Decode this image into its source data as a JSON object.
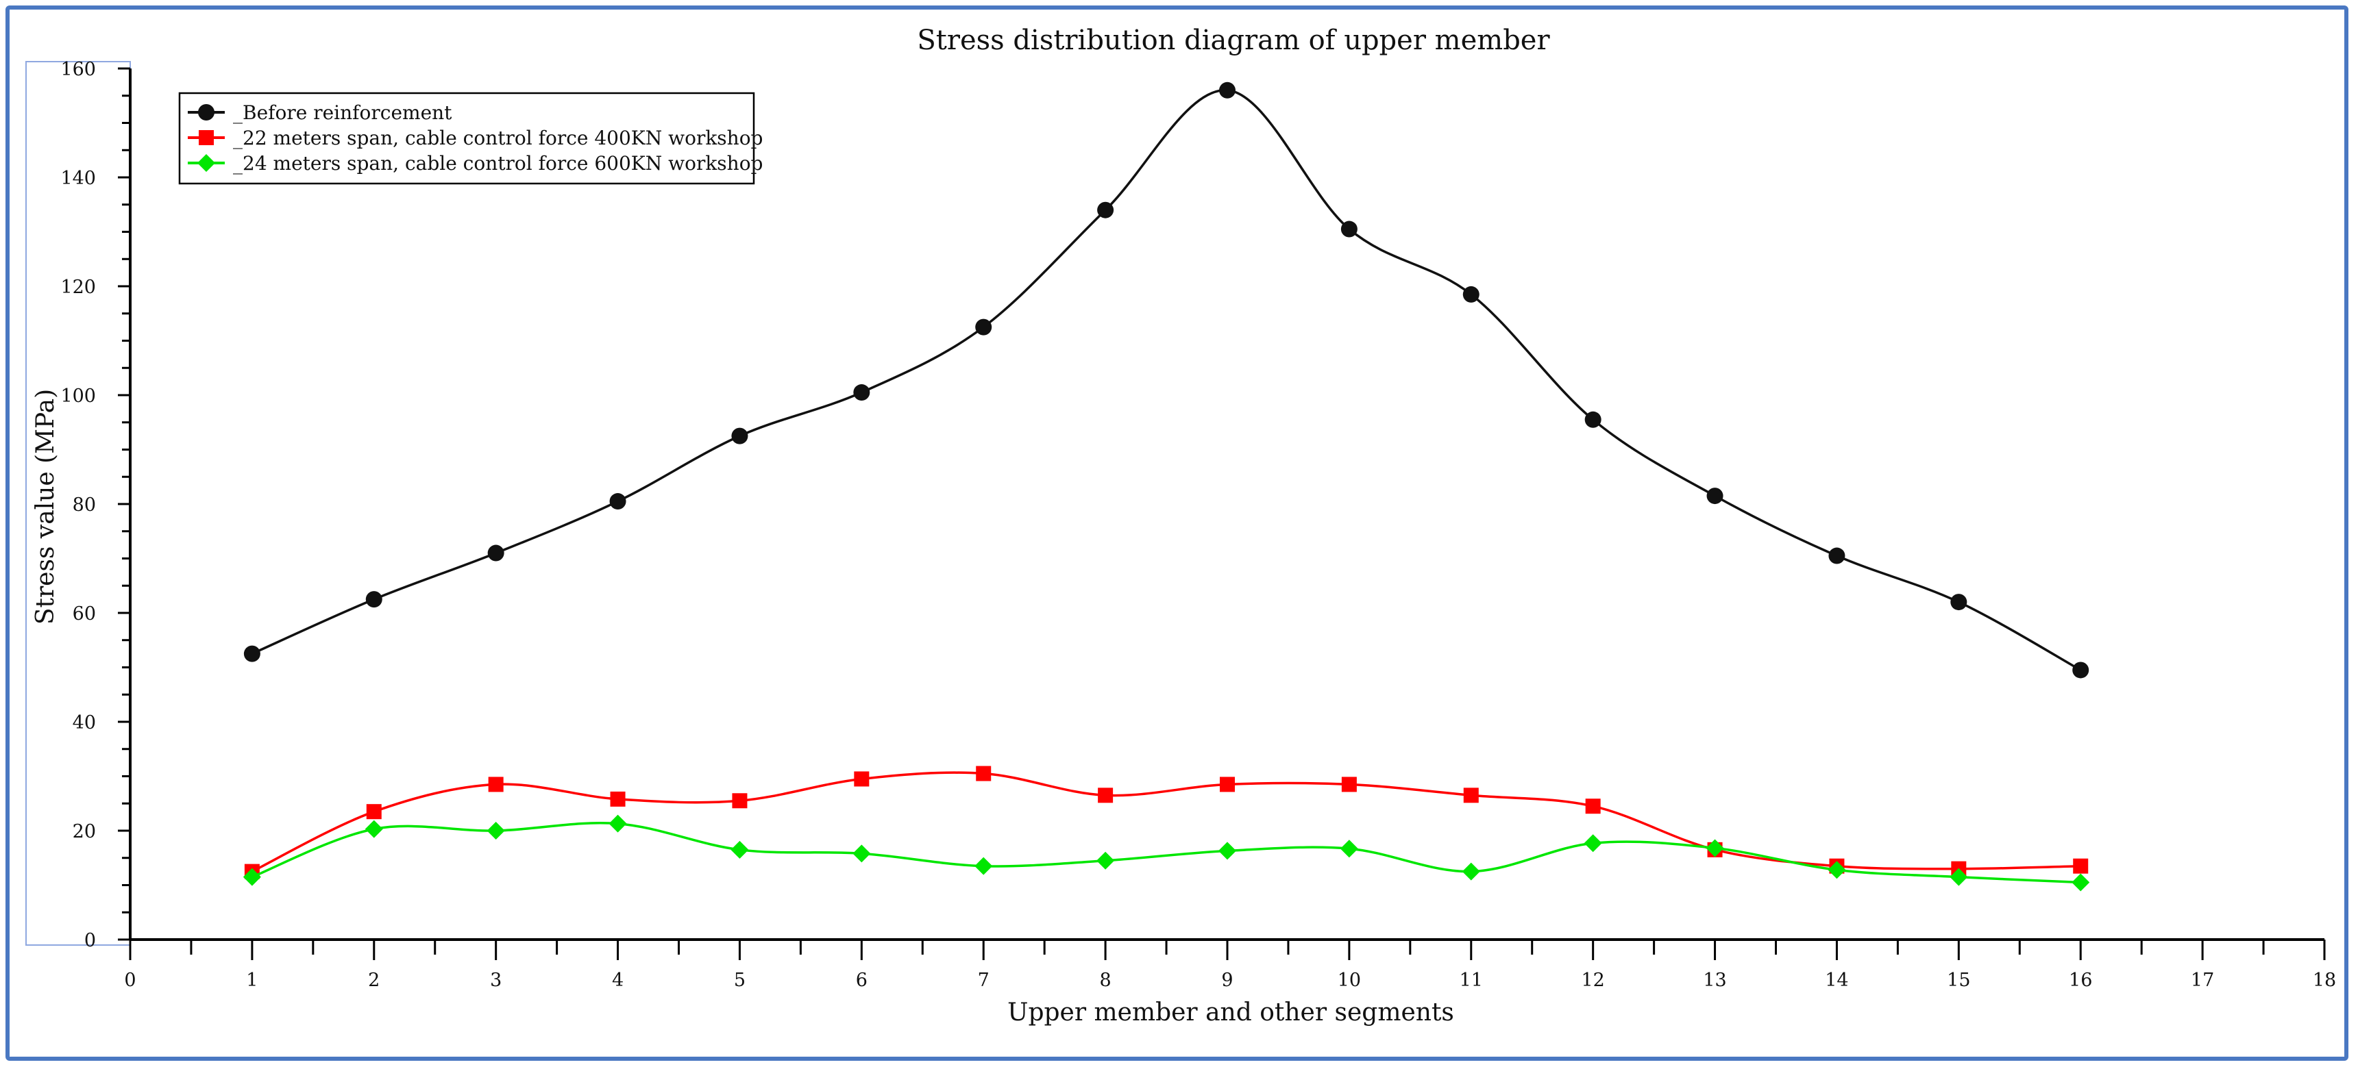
{
  "chart_data": {
    "type": "line",
    "title": "Stress distribution diagram of upper member",
    "xlabel": "Upper member and other segments",
    "ylabel": "Stress value (MPa)",
    "xlim": [
      0,
      18
    ],
    "ylim": [
      0,
      160
    ],
    "x_ticks": [
      0,
      1,
      2,
      3,
      4,
      5,
      6,
      7,
      8,
      9,
      10,
      11,
      12,
      13,
      14,
      15,
      16,
      17,
      18
    ],
    "y_ticks": [
      0,
      20,
      40,
      60,
      80,
      100,
      120,
      140,
      160
    ],
    "grid": false,
    "legend_position": "top-left",
    "x": [
      1,
      2,
      3,
      4,
      5,
      6,
      7,
      8,
      9,
      10,
      11,
      12,
      13,
      14,
      15,
      16
    ],
    "series": [
      {
        "name": "_Before reinforcement",
        "color": "#111111",
        "marker": "circle",
        "values": [
          52.5,
          62.5,
          71,
          80.5,
          92.5,
          100.5,
          112.5,
          134,
          156,
          130.5,
          118.5,
          95.5,
          81.5,
          70.5,
          62,
          49.5
        ]
      },
      {
        "name": "_22 meters span, cable control force 400KN workshop",
        "color": "#ff0000",
        "marker": "square",
        "values": [
          12.5,
          23.5,
          28.5,
          25.8,
          25.5,
          29.5,
          30.5,
          26.5,
          28.5,
          28.5,
          26.5,
          24.5,
          16.5,
          13.5,
          13,
          13.5
        ]
      },
      {
        "name": "_24 meters span, cable control force 600KN workshop",
        "color": "#00e600",
        "marker": "diamond",
        "values": [
          11.5,
          20.3,
          20,
          21.3,
          16.5,
          15.8,
          13.5,
          14.5,
          16.3,
          16.7,
          12.5,
          17.7,
          16.8,
          12.8,
          11.5,
          10.5
        ]
      }
    ]
  }
}
